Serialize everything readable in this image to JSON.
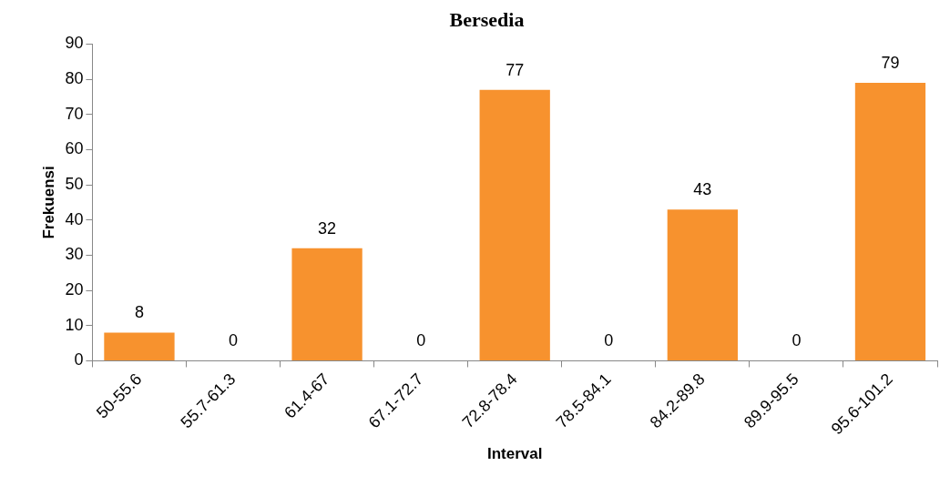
{
  "chart_data": {
    "type": "bar",
    "title": "Bersedia",
    "xlabel": "Interval",
    "ylabel": "Frekuensi",
    "categories": [
      "50-55.6",
      "55.7-61.3",
      "61.4-67",
      "67.1-72.7",
      "72.8-78.4",
      "78.5-84.1",
      "84.2-89.8",
      "89.9-95.5",
      "95.6-101.2"
    ],
    "values": [
      8,
      0,
      32,
      0,
      77,
      0,
      43,
      0,
      79
    ],
    "color": "#f7922e",
    "ylim": [
      0,
      90
    ],
    "yticks": [
      0,
      10,
      20,
      30,
      40,
      50,
      60,
      70,
      80,
      90
    ],
    "grid": false,
    "data_labels": true
  }
}
